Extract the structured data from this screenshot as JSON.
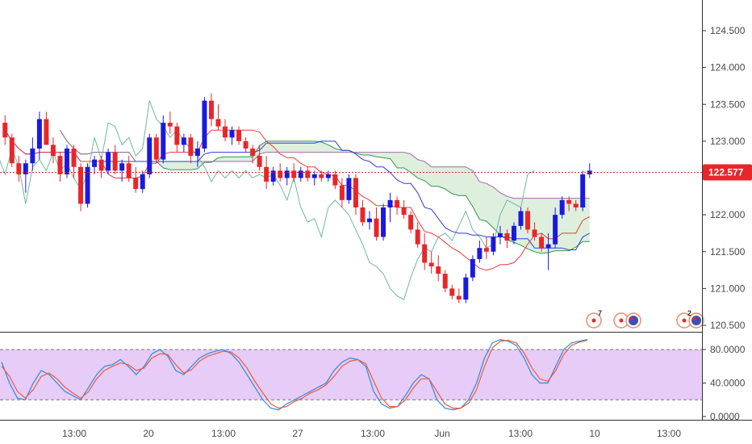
{
  "colors": {
    "background": "#ffffff",
    "bull": "#1a1adf",
    "bear": "#e8262a",
    "cloud_fill": "#d8ecd8",
    "span_a": "#2e9a4a",
    "span_b": "#a46aa6",
    "tenkan": "#e83b3b",
    "kijun": "#2f3bdc",
    "chikou": "#6fb7a4",
    "last_price": "#e8262a",
    "stoch_band": "#e6ccf6",
    "stoch_k": "#2d8ae6",
    "stoch_d": "#ef5a3a",
    "axis_text": "#4a4a4a",
    "pane_border": "#333333"
  },
  "icons": {
    "events": [
      "event-marker-icon",
      "event-marker-icon",
      "flag-icon",
      "event-marker-icon",
      "flag-icon"
    ]
  },
  "chart_data": [
    {
      "type": "candlestick",
      "panel": "price",
      "indicators": [
        "Ichimoku cloud",
        "Tenkan-sen",
        "Kijun-sen",
        "Chikou span"
      ],
      "y_ticks": [
        "124.500",
        "124.000",
        "123.500",
        "123.000",
        "122.000",
        "121.500",
        "121.000",
        "120.500"
      ],
      "ylim": [
        120.5,
        124.75
      ],
      "last_price": 122.577,
      "last_price_label": "122.577",
      "event_counts": [
        "7",
        "2"
      ],
      "candles": [
        [
          123.25,
          123.35,
          122.95,
          123.05
        ],
        [
          123.05,
          123.1,
          122.65,
          122.7
        ],
        [
          122.7,
          122.8,
          122.45,
          122.55
        ],
        [
          122.55,
          122.75,
          122.3,
          122.7
        ],
        [
          122.7,
          123.05,
          122.6,
          122.9
        ],
        [
          122.9,
          123.4,
          122.75,
          123.3
        ],
        [
          123.3,
          123.4,
          122.95,
          122.95
        ],
        [
          122.95,
          123.05,
          122.7,
          122.8
        ],
        [
          122.8,
          122.85,
          122.45,
          122.55
        ],
        [
          122.55,
          122.95,
          122.5,
          122.9
        ],
        [
          122.9,
          122.95,
          122.5,
          122.65
        ],
        [
          122.65,
          122.7,
          122.05,
          122.15
        ],
        [
          122.15,
          122.7,
          122.1,
          122.65
        ],
        [
          122.65,
          122.8,
          122.55,
          122.75
        ],
        [
          122.75,
          122.8,
          122.5,
          122.6
        ],
        [
          122.6,
          122.9,
          122.55,
          122.85
        ],
        [
          122.85,
          122.95,
          122.55,
          122.6
        ],
        [
          122.6,
          122.75,
          122.45,
          122.7
        ],
        [
          122.7,
          122.8,
          122.45,
          122.5
        ],
        [
          122.5,
          122.65,
          122.3,
          122.35
        ],
        [
          122.35,
          122.6,
          122.3,
          122.55
        ],
        [
          122.55,
          123.1,
          122.5,
          123.05
        ],
        [
          123.05,
          123.1,
          122.7,
          122.75
        ],
        [
          122.75,
          123.35,
          122.7,
          123.25
        ],
        [
          123.25,
          123.4,
          123.1,
          123.2
        ],
        [
          123.2,
          123.25,
          122.85,
          122.95
        ],
        [
          122.95,
          123.1,
          122.85,
          123.05
        ],
        [
          123.05,
          123.1,
          122.7,
          122.8
        ],
        [
          122.8,
          123.0,
          122.65,
          122.9
        ],
        [
          122.9,
          123.6,
          122.85,
          123.55
        ],
        [
          123.55,
          123.65,
          123.2,
          123.3
        ],
        [
          123.3,
          123.5,
          123.15,
          123.2
        ],
        [
          123.2,
          123.3,
          123.0,
          123.05
        ],
        [
          123.05,
          123.2,
          122.95,
          123.15
        ],
        [
          123.15,
          123.2,
          122.95,
          123.0
        ],
        [
          123.0,
          123.05,
          122.85,
          122.9
        ],
        [
          122.9,
          122.95,
          122.7,
          122.8
        ],
        [
          122.8,
          122.95,
          122.6,
          122.65
        ],
        [
          122.65,
          122.8,
          122.35,
          122.45
        ],
        [
          122.45,
          122.65,
          122.4,
          122.6
        ],
        [
          122.6,
          122.7,
          122.45,
          122.5
        ],
        [
          122.5,
          122.65,
          122.4,
          122.6
        ],
        [
          122.6,
          122.7,
          122.45,
          122.5
        ],
        [
          122.5,
          122.65,
          122.45,
          122.6
        ],
        [
          122.6,
          122.65,
          122.45,
          122.5
        ],
        [
          122.5,
          122.6,
          122.4,
          122.55
        ],
        [
          122.55,
          122.6,
          122.45,
          122.5
        ],
        [
          122.5,
          122.6,
          122.45,
          122.55
        ],
        [
          122.55,
          122.6,
          122.35,
          122.4
        ],
        [
          122.4,
          122.5,
          122.1,
          122.2
        ],
        [
          122.2,
          122.55,
          122.15,
          122.5
        ],
        [
          122.5,
          122.55,
          122.0,
          122.1
        ],
        [
          122.1,
          122.2,
          121.85,
          121.9
        ],
        [
          121.9,
          122.05,
          121.8,
          121.95
        ],
        [
          121.95,
          122.1,
          121.65,
          121.7
        ],
        [
          121.7,
          122.15,
          121.65,
          122.1
        ],
        [
          122.1,
          122.3,
          121.9,
          122.2
        ],
        [
          122.2,
          122.25,
          122.0,
          122.1
        ],
        [
          122.1,
          122.2,
          121.95,
          122.0
        ],
        [
          122.0,
          122.05,
          121.75,
          121.8
        ],
        [
          121.8,
          121.9,
          121.55,
          121.6
        ],
        [
          121.6,
          121.75,
          121.25,
          121.35
        ],
        [
          121.35,
          121.5,
          121.2,
          121.3
        ],
        [
          121.3,
          121.45,
          121.1,
          121.2
        ],
        [
          121.2,
          121.25,
          120.95,
          121.0
        ],
        [
          121.0,
          121.05,
          120.85,
          120.9
        ],
        [
          120.9,
          121.0,
          120.8,
          120.85
        ],
        [
          120.85,
          121.2,
          120.8,
          121.15
        ],
        [
          121.15,
          121.45,
          121.1,
          121.4
        ],
        [
          121.4,
          121.65,
          121.35,
          121.55
        ],
        [
          121.55,
          121.7,
          121.4,
          121.5
        ],
        [
          121.5,
          121.75,
          121.45,
          121.7
        ],
        [
          121.7,
          121.85,
          121.6,
          121.75
        ],
        [
          121.75,
          121.8,
          121.55,
          121.65
        ],
        [
          121.65,
          121.9,
          121.6,
          121.85
        ],
        [
          121.85,
          122.1,
          121.8,
          122.05
        ],
        [
          122.05,
          122.1,
          121.75,
          121.8
        ],
        [
          121.8,
          121.9,
          121.65,
          121.7
        ],
        [
          121.7,
          121.75,
          121.5,
          121.55
        ],
        [
          121.55,
          121.75,
          121.25,
          121.6
        ],
        [
          121.6,
          122.1,
          121.55,
          122.0
        ],
        [
          122.0,
          122.25,
          121.95,
          122.2
        ],
        [
          122.2,
          122.25,
          122.05,
          122.15
        ],
        [
          122.15,
          122.2,
          122.05,
          122.1
        ],
        [
          122.1,
          122.6,
          122.05,
          122.55
        ],
        [
          122.55,
          122.7,
          122.5,
          122.6
        ]
      ]
    },
    {
      "type": "line",
      "panel": "stochastic",
      "y_ticks": [
        "80.0000",
        "40.0000",
        "0.0000"
      ],
      "ylim": [
        -5,
        105
      ],
      "band": [
        20,
        80
      ],
      "series": [
        {
          "values": [
            65,
            40,
            22,
            20,
            40,
            55,
            50,
            40,
            30,
            25,
            20,
            35,
            50,
            60,
            62,
            68,
            60,
            50,
            60,
            75,
            80,
            72,
            55,
            50,
            60,
            70,
            75,
            78,
            80,
            75,
            65,
            50,
            35,
            20,
            10,
            8,
            15,
            20,
            25,
            30,
            35,
            40,
            55,
            65,
            70,
            68,
            60,
            30,
            15,
            10,
            12,
            25,
            40,
            50,
            45,
            20,
            10,
            8,
            10,
            20,
            40,
            70,
            88,
            92,
            90,
            85,
            70,
            50,
            40,
            40,
            60,
            80,
            88,
            90,
            92
          ]
        },
        {
          "values": [
            60,
            48,
            30,
            22,
            32,
            48,
            52,
            45,
            35,
            28,
            22,
            30,
            45,
            55,
            60,
            64,
            62,
            55,
            58,
            70,
            75,
            74,
            62,
            52,
            56,
            66,
            72,
            75,
            78,
            77,
            70,
            58,
            42,
            28,
            15,
            10,
            12,
            18,
            22,
            28,
            32,
            38,
            48,
            60,
            66,
            68,
            63,
            42,
            22,
            12,
            12,
            20,
            34,
            45,
            45,
            30,
            15,
            10,
            10,
            16,
            32,
            60,
            82,
            90,
            91,
            88,
            76,
            58,
            45,
            42,
            55,
            74,
            85,
            89,
            91
          ]
        }
      ]
    }
  ],
  "x_axis": {
    "labels": [
      "13:00",
      "20",
      "13:00",
      "27",
      "13:00",
      "Jun",
      "13:00",
      "10",
      "13:00"
    ]
  }
}
